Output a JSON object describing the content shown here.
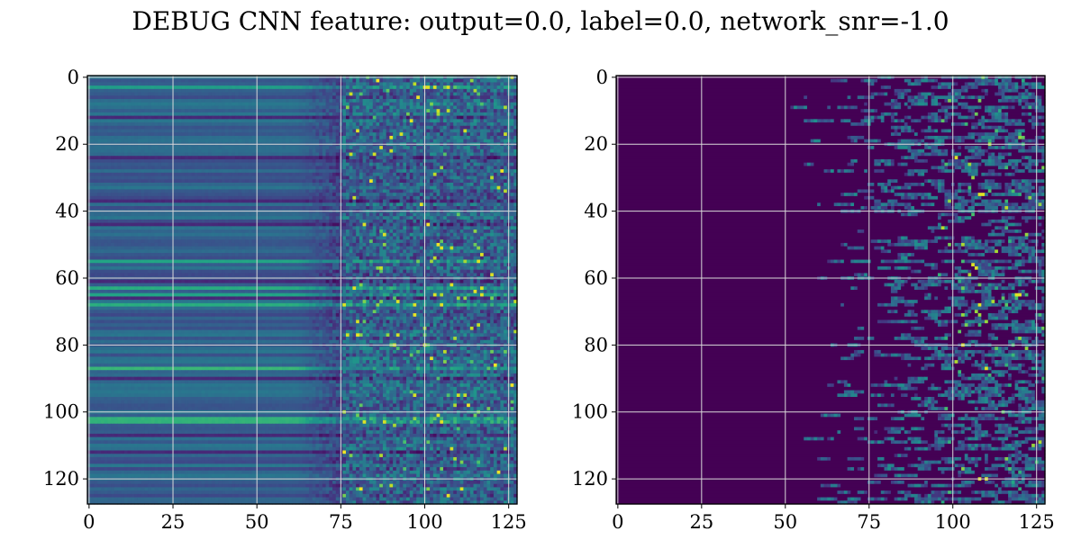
{
  "title": "DEBUG CNN feature: output=0.0, label=0.0, network_snr=-1.0",
  "chart_data": [
    {
      "type": "heatmap",
      "name": "left-heatmap",
      "colormap": "viridis",
      "rows": 128,
      "cols": 128,
      "xlim": [
        0,
        127
      ],
      "ylim": [
        127,
        0
      ],
      "x_ticks": [
        "0",
        "25",
        "50",
        "75",
        "100",
        "125"
      ],
      "y_ticks": [
        "0",
        "20",
        "40",
        "60",
        "80",
        "100",
        "120"
      ],
      "grid": true,
      "description_values": "Smooth horizontal bands in columns 0-70 (values ~0.25-0.45, brighter bands at rows 55, 68, 87, 102), noisy speckle in columns 75-127 with bright spots at rows 3, 63-68, 103",
      "bright_rows": [
        3,
        55,
        63,
        65,
        68,
        87,
        102,
        103
      ]
    },
    {
      "type": "heatmap",
      "name": "right-heatmap",
      "colormap": "viridis",
      "rows": 128,
      "cols": 128,
      "xlim": [
        0,
        127
      ],
      "ylim": [
        127,
        0
      ],
      "x_ticks": [
        "0",
        "25",
        "50",
        "75",
        "100",
        "125"
      ],
      "y_ticks": [
        "0",
        "20",
        "40",
        "60",
        "80",
        "100",
        "120"
      ],
      "grid": true,
      "description_values": "Near-zero (dark purple) for columns 0-55, sparse horizontal streaks increasing in density toward columns 75-127, bright spots around rows 35, 56, 65, 68, 80, 87, 120",
      "bright_rows": [
        35,
        56,
        65,
        68,
        80,
        87,
        120
      ]
    }
  ]
}
